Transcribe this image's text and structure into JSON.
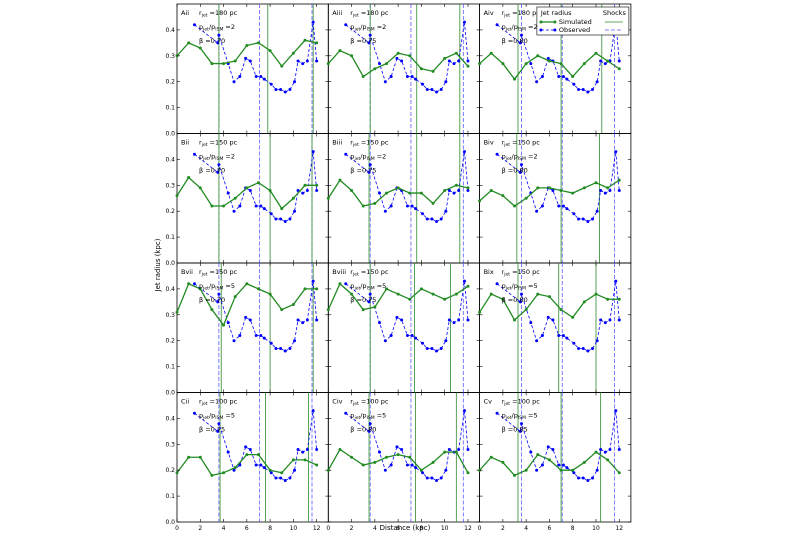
{
  "chart_data": {
    "type": "line",
    "xlabel": "Distance (kpc)",
    "ylabel": "Jet radius (kpc)",
    "xlim": [
      0,
      13
    ],
    "ylim": [
      0,
      0.5
    ],
    "xticks": [
      0,
      2,
      4,
      6,
      8,
      10,
      12
    ],
    "yticks": [
      0.0,
      0.1,
      0.2,
      0.3,
      0.4
    ],
    "grid": false,
    "legend": {
      "placement": "top-right panel",
      "title_left": "Jet radius",
      "title_right": "Shocks",
      "entries": [
        "Simulated",
        "Observed"
      ]
    },
    "colors": {
      "simulated": "#228b22",
      "observed": "#0000ff",
      "obs_shock": "#5b5bff",
      "sim_shock": "#2e8b2e"
    },
    "observed": {
      "x": [
        1.5,
        3.5,
        3.6,
        4.4,
        4.9,
        5.4,
        5.9,
        6.3,
        6.8,
        7.2,
        7.5,
        8.1,
        8.5,
        8.9,
        9.3,
        9.7,
        10.1,
        10.4,
        10.8,
        11.2,
        11.7,
        12.0
      ],
      "y": [
        0.42,
        0.35,
        0.38,
        0.27,
        0.2,
        0.22,
        0.29,
        0.28,
        0.22,
        0.22,
        0.21,
        0.19,
        0.17,
        0.17,
        0.16,
        0.17,
        0.2,
        0.28,
        0.27,
        0.28,
        0.43,
        0.28
      ]
    },
    "observed_shocks": [
      3.6,
      7.1,
      11.6
    ],
    "panels": [
      {
        "id": "Aii",
        "r": "180",
        "p": "2",
        "beta": "0.70",
        "sim_x": [
          0,
          1,
          2,
          3,
          4,
          5,
          6,
          7,
          8,
          9,
          10,
          11,
          12
        ],
        "sim_y": [
          0.3,
          0.35,
          0.33,
          0.27,
          0.27,
          0.28,
          0.34,
          0.35,
          0.32,
          0.26,
          0.31,
          0.36,
          0.35
        ],
        "sim_shocks": [
          3.6,
          7.8,
          11.7
        ]
      },
      {
        "id": "Aiii",
        "r": "180",
        "p": "2",
        "beta": "0.75",
        "sim_x": [
          0,
          1,
          2,
          3,
          4,
          5,
          6,
          7,
          8,
          9,
          10,
          11,
          12
        ],
        "sim_y": [
          0.27,
          0.32,
          0.3,
          0.22,
          0.25,
          0.27,
          0.31,
          0.3,
          0.25,
          0.24,
          0.29,
          0.31,
          0.26
        ],
        "sim_shocks": [
          3.6,
          7.6,
          11.3
        ]
      },
      {
        "id": "Aiv",
        "r": "180",
        "p": "2",
        "beta": "0.80",
        "sim_x": [
          0,
          1,
          2,
          3,
          4,
          5,
          6,
          7,
          8,
          9,
          10,
          11,
          12
        ],
        "sim_y": [
          0.27,
          0.31,
          0.27,
          0.21,
          0.27,
          0.3,
          0.28,
          0.27,
          0.22,
          0.27,
          0.31,
          0.28,
          0.25
        ],
        "sim_shocks": [
          3.3,
          7.0,
          10.5
        ]
      },
      {
        "id": "Bii",
        "r": "150",
        "p": "2",
        "beta": "0.70",
        "sim_x": [
          0,
          1,
          2,
          3,
          4,
          5,
          6,
          7,
          8,
          9,
          10,
          11,
          12
        ],
        "sim_y": [
          0.26,
          0.33,
          0.29,
          0.22,
          0.22,
          0.25,
          0.29,
          0.31,
          0.28,
          0.21,
          0.25,
          0.3,
          0.3
        ],
        "sim_shocks": [
          3.6,
          8.0,
          11.6
        ]
      },
      {
        "id": "Biii",
        "r": "150",
        "p": "2",
        "beta": "0.75",
        "sim_x": [
          0,
          1,
          2,
          3,
          4,
          5,
          6,
          7,
          8,
          9,
          10,
          11,
          12
        ],
        "sim_y": [
          0.25,
          0.32,
          0.28,
          0.22,
          0.23,
          0.27,
          0.29,
          0.27,
          0.27,
          0.23,
          0.28,
          0.3,
          0.29
        ],
        "sim_shocks": [
          3.5,
          7.6,
          11.3
        ]
      },
      {
        "id": "Biv",
        "r": "150",
        "p": "2",
        "beta": "0.80",
        "sim_x": [
          0,
          1,
          2,
          3,
          4,
          5,
          6,
          7,
          8,
          9,
          10,
          11,
          12
        ],
        "sim_y": [
          0.24,
          0.28,
          0.26,
          0.22,
          0.25,
          0.29,
          0.29,
          0.28,
          0.27,
          0.29,
          0.31,
          0.29,
          0.32
        ],
        "sim_shocks": [
          3.2,
          7.0,
          10.3
        ]
      },
      {
        "id": "Bvii",
        "r": "150",
        "p": "5",
        "beta": "0.70",
        "sim_x": [
          0,
          1,
          2,
          3,
          4,
          5,
          6,
          7,
          8,
          9,
          10,
          11,
          12
        ],
        "sim_y": [
          0.31,
          0.42,
          0.4,
          0.32,
          0.26,
          0.37,
          0.42,
          0.4,
          0.38,
          0.32,
          0.34,
          0.4,
          0.4
        ],
        "sim_shocks": [
          3.8,
          8.0,
          11.7
        ]
      },
      {
        "id": "Bviii",
        "r": "150",
        "p": "5",
        "beta": "0.75",
        "sim_x": [
          0,
          1,
          2,
          3,
          4,
          5,
          6,
          7,
          8,
          9,
          10,
          11,
          12
        ],
        "sim_y": [
          0.32,
          0.42,
          0.38,
          0.32,
          0.33,
          0.4,
          0.38,
          0.36,
          0.4,
          0.38,
          0.36,
          0.38,
          0.41
        ],
        "sim_shocks": [
          3.6,
          7.4,
          10.5
        ]
      },
      {
        "id": "Bix",
        "r": "150",
        "p": "5",
        "beta": "0.80",
        "sim_x": [
          0,
          1,
          2,
          3,
          4,
          5,
          6,
          7,
          8,
          9,
          10,
          11,
          12
        ],
        "sim_y": [
          0.31,
          0.38,
          0.36,
          0.28,
          0.32,
          0.38,
          0.37,
          0.32,
          0.29,
          0.35,
          0.38,
          0.36,
          0.36
        ],
        "sim_shocks": [
          3.3,
          6.8,
          10.0
        ]
      },
      {
        "id": "Cii",
        "r": "100",
        "p": "5",
        "beta": "0.75",
        "sim_x": [
          0,
          1,
          2,
          3,
          4,
          5,
          6,
          7,
          8,
          9,
          10,
          11,
          12
        ],
        "sim_y": [
          0.19,
          0.25,
          0.25,
          0.18,
          0.19,
          0.21,
          0.26,
          0.26,
          0.2,
          0.19,
          0.24,
          0.24,
          0.22
        ],
        "sim_shocks": [
          3.7,
          7.6,
          11.3
        ]
      },
      {
        "id": "Civ",
        "r": "100",
        "p": "5",
        "beta": "0.80",
        "sim_x": [
          0,
          1,
          2,
          3,
          4,
          5,
          6,
          7,
          8,
          9,
          10,
          11,
          12
        ],
        "sim_y": [
          0.2,
          0.28,
          0.25,
          0.22,
          0.23,
          0.25,
          0.26,
          0.25,
          0.2,
          0.23,
          0.27,
          0.27,
          0.19
        ],
        "sim_shocks": [
          3.5,
          7.5,
          11.0
        ]
      },
      {
        "id": "Cv",
        "r": "100",
        "p": "5",
        "beta": "0.85",
        "sim_x": [
          0,
          1,
          2,
          3,
          4,
          5,
          6,
          7,
          8,
          9,
          10,
          11,
          12
        ],
        "sim_y": [
          0.2,
          0.25,
          0.23,
          0.18,
          0.2,
          0.26,
          0.24,
          0.2,
          0.2,
          0.23,
          0.27,
          0.24,
          0.19
        ],
        "sim_shocks": [
          3.3,
          7.0,
          10.4
        ]
      }
    ]
  }
}
